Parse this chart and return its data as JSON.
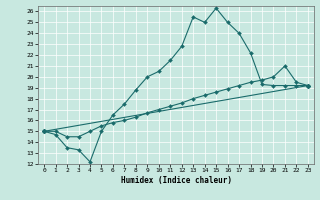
{
  "title": "",
  "xlabel": "Humidex (Indice chaleur)",
  "xlim": [
    -0.5,
    23.5
  ],
  "ylim": [
    12,
    26.5
  ],
  "xticks": [
    0,
    1,
    2,
    3,
    4,
    5,
    6,
    7,
    8,
    9,
    10,
    11,
    12,
    13,
    14,
    15,
    16,
    17,
    18,
    19,
    20,
    21,
    22,
    23
  ],
  "yticks": [
    12,
    13,
    14,
    15,
    16,
    17,
    18,
    19,
    20,
    21,
    22,
    23,
    24,
    25,
    26
  ],
  "bg_color": "#c8e8e0",
  "line_color": "#1a6b6b",
  "line1_x": [
    0,
    1,
    2,
    3,
    4,
    5,
    6,
    7,
    8,
    9,
    10,
    11,
    12,
    13,
    14,
    15,
    16,
    17,
    18,
    19,
    20,
    21,
    22,
    23
  ],
  "line1_y": [
    15,
    14.7,
    13.5,
    13.3,
    12.2,
    15.0,
    16.5,
    17.5,
    18.8,
    20.0,
    20.5,
    21.5,
    22.8,
    25.5,
    25.0,
    26.3,
    25.0,
    24.0,
    22.2,
    19.3,
    19.2,
    19.2,
    19.2,
    19.2
  ],
  "line2_x": [
    0,
    1,
    2,
    3,
    4,
    5,
    6,
    7,
    8,
    9,
    10,
    11,
    12,
    13,
    14,
    15,
    16,
    17,
    18,
    19,
    20,
    21,
    22,
    23
  ],
  "line2_y": [
    15.0,
    15.0,
    14.5,
    14.5,
    15.0,
    15.5,
    15.8,
    16.0,
    16.3,
    16.7,
    17.0,
    17.3,
    17.6,
    18.0,
    18.3,
    18.6,
    18.9,
    19.2,
    19.5,
    19.7,
    20.0,
    21.0,
    19.5,
    19.2
  ],
  "line3_x": [
    0,
    23
  ],
  "line3_y": [
    15.0,
    19.2
  ]
}
